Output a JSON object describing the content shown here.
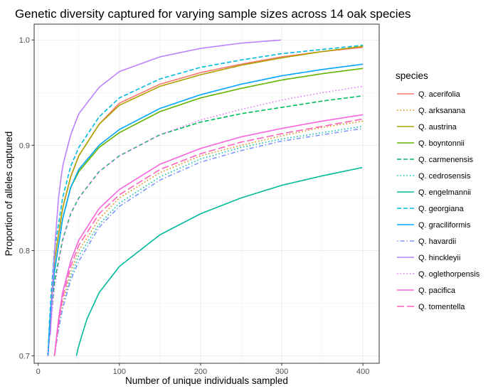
{
  "chart_data": {
    "type": "line",
    "title": "Genetic diversity captured for varying sample sizes across 14 oak species",
    "xlabel": "Number of unique individuals sampled",
    "ylabel": "Proportion of alleles captured",
    "xlim": [
      -5,
      420
    ],
    "ylim": [
      0.693,
      1.015
    ],
    "x_ticks": [
      0,
      100,
      200,
      300,
      400
    ],
    "x_tick_labels": [
      "0",
      "100",
      "200",
      "300",
      "400"
    ],
    "y_ticks": [
      0.7,
      0.8,
      0.9,
      1.0
    ],
    "y_tick_labels": [
      "0.7",
      "0.8",
      "0.9",
      "1.0"
    ],
    "grid": true,
    "legend_title": "species",
    "legend_position": "right",
    "series": [
      {
        "name": "Q. acerifolia",
        "color": "#F8766D",
        "linestyle": "solid",
        "x": [
          12,
          15,
          20,
          30,
          40,
          50,
          75,
          100,
          150,
          200,
          250,
          300,
          350,
          400
        ],
        "y": [
          0.7,
          0.74,
          0.79,
          0.84,
          0.87,
          0.89,
          0.92,
          0.94,
          0.958,
          0.969,
          0.977,
          0.984,
          0.989,
          0.993
        ]
      },
      {
        "name": "Q. arksanana",
        "color": "#DB8E00",
        "linestyle": "dotted",
        "x": [
          20,
          25,
          30,
          40,
          50,
          75,
          100,
          150,
          200,
          250,
          300,
          350,
          400
        ],
        "y": [
          0.7,
          0.73,
          0.75,
          0.78,
          0.8,
          0.83,
          0.85,
          0.874,
          0.89,
          0.9,
          0.909,
          0.917,
          0.923
        ]
      },
      {
        "name": "Q. austrina",
        "color": "#AEA200",
        "linestyle": "solid",
        "x": [
          12,
          15,
          20,
          30,
          40,
          50,
          75,
          100,
          150,
          200,
          250,
          300,
          350,
          400
        ],
        "y": [
          0.7,
          0.74,
          0.79,
          0.84,
          0.87,
          0.89,
          0.92,
          0.938,
          0.956,
          0.967,
          0.976,
          0.983,
          0.989,
          0.994
        ]
      },
      {
        "name": "Q. boyntonnii",
        "color": "#64B200",
        "linestyle": "solid",
        "x": [
          12,
          15,
          20,
          30,
          40,
          50,
          75,
          100,
          150,
          200,
          250,
          300,
          350,
          400
        ],
        "y": [
          0.7,
          0.74,
          0.78,
          0.83,
          0.86,
          0.875,
          0.898,
          0.912,
          0.932,
          0.945,
          0.954,
          0.962,
          0.968,
          0.973
        ]
      },
      {
        "name": "Q. carmenensis",
        "color": "#00BD5C",
        "linestyle": "dashed",
        "x": [
          12,
          15,
          20,
          30,
          40,
          50,
          75,
          100,
          150,
          200,
          250,
          300,
          350,
          400
        ],
        "y": [
          0.7,
          0.73,
          0.77,
          0.81,
          0.835,
          0.85,
          0.875,
          0.89,
          0.91,
          0.922,
          0.93,
          0.936,
          0.942,
          0.947
        ]
      },
      {
        "name": "Q. cedrosensis",
        "color": "#00C1A7",
        "linestyle": "dotted",
        "x": [
          20,
          25,
          30,
          40,
          50,
          75,
          100,
          150,
          200,
          250,
          300,
          350,
          400
        ],
        "y": [
          0.7,
          0.725,
          0.745,
          0.775,
          0.795,
          0.825,
          0.845,
          0.87,
          0.887,
          0.898,
          0.906,
          0.912,
          0.918
        ]
      },
      {
        "name": "Q. engelmannii",
        "color": "#00BA9B",
        "linestyle": "solid",
        "x": [
          47,
          50,
          60,
          75,
          100,
          150,
          200,
          250,
          300,
          350,
          400
        ],
        "y": [
          0.7,
          0.71,
          0.735,
          0.76,
          0.785,
          0.815,
          0.835,
          0.85,
          0.862,
          0.871,
          0.879
        ]
      },
      {
        "name": "Q. georgiana",
        "color": "#00BADE",
        "linestyle": "dashed",
        "x": [
          12,
          15,
          20,
          30,
          40,
          50,
          75,
          100,
          150,
          200,
          250,
          300,
          350,
          400
        ],
        "y": [
          0.7,
          0.75,
          0.8,
          0.85,
          0.88,
          0.898,
          0.927,
          0.945,
          0.963,
          0.974,
          0.981,
          0.987,
          0.991,
          0.995
        ]
      },
      {
        "name": "Q. graciliformis",
        "color": "#00A5FF",
        "linestyle": "solid",
        "x": [
          12,
          15,
          20,
          30,
          40,
          50,
          75,
          100,
          150,
          200,
          250,
          300,
          350,
          400
        ],
        "y": [
          0.7,
          0.74,
          0.78,
          0.83,
          0.86,
          0.877,
          0.9,
          0.915,
          0.935,
          0.948,
          0.958,
          0.966,
          0.972,
          0.977
        ]
      },
      {
        "name": "Q. havardii",
        "color": "#7F96FF",
        "linestyle": "dashdot",
        "x": [
          20,
          25,
          30,
          40,
          50,
          75,
          100,
          150,
          200,
          250,
          300,
          350,
          400
        ],
        "y": [
          0.7,
          0.725,
          0.745,
          0.772,
          0.79,
          0.822,
          0.842,
          0.867,
          0.884,
          0.895,
          0.904,
          0.91,
          0.916
        ]
      },
      {
        "name": "Q. hinckleyii",
        "color": "#BC81FF",
        "linestyle": "solid",
        "x": [
          15,
          20,
          25,
          30,
          40,
          50,
          75,
          100,
          150,
          200,
          250,
          300
        ],
        "y": [
          0.72,
          0.8,
          0.85,
          0.88,
          0.91,
          0.93,
          0.955,
          0.97,
          0.984,
          0.992,
          0.997,
          1.0
        ]
      },
      {
        "name": "Q. oglethorpensis",
        "color": "#E26EF7",
        "linestyle": "dotted",
        "x": [
          12,
          15,
          20,
          30,
          40,
          50,
          75,
          100,
          150,
          200,
          250,
          300,
          350,
          400
        ],
        "y": [
          0.7,
          0.725,
          0.765,
          0.81,
          0.835,
          0.85,
          0.875,
          0.89,
          0.91,
          0.924,
          0.934,
          0.943,
          0.95,
          0.956
        ]
      },
      {
        "name": "Q. pacifica",
        "color": "#F863DF",
        "linestyle": "solid",
        "x": [
          20,
          25,
          30,
          40,
          50,
          75,
          100,
          150,
          200,
          250,
          300,
          350,
          400
        ],
        "y": [
          0.7,
          0.735,
          0.76,
          0.79,
          0.81,
          0.84,
          0.858,
          0.882,
          0.897,
          0.908,
          0.916,
          0.923,
          0.929
        ]
      },
      {
        "name": "Q. tomentella",
        "color": "#FF62BC",
        "linestyle": "longdash",
        "x": [
          20,
          25,
          30,
          40,
          50,
          75,
          100,
          150,
          200,
          250,
          300,
          350,
          400
        ],
        "y": [
          0.7,
          0.73,
          0.755,
          0.785,
          0.805,
          0.835,
          0.853,
          0.877,
          0.892,
          0.903,
          0.911,
          0.918,
          0.925
        ]
      }
    ]
  }
}
